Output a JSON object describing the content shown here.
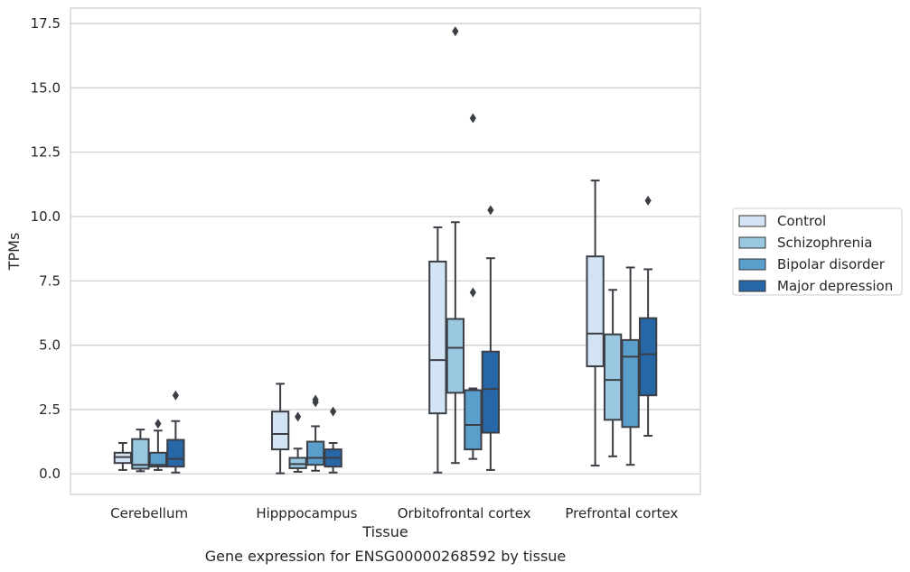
{
  "chart_data": {
    "type": "box",
    "title": "Gene expression for ENSG00000268592 by tissue",
    "xlabel": "Tissue",
    "ylabel": "TPMs",
    "ylim": [
      -0.8,
      18.1
    ],
    "yticks": [
      0.0,
      2.5,
      5.0,
      7.5,
      10.0,
      12.5,
      15.0,
      17.5
    ],
    "ytick_labels": [
      "0.0",
      "2.5",
      "5.0",
      "7.5",
      "10.0",
      "12.5",
      "15.0",
      "17.5"
    ],
    "grid": "horizontal",
    "legend_position": "right",
    "categories": [
      "Cerebellum",
      "Hipppocampus",
      "Orbitofrontal cortex",
      "Prefrontal cortex"
    ],
    "series": [
      {
        "name": "Control",
        "color": "#d2e3f3",
        "boxes": [
          {
            "whislo": 0.15,
            "q1": 0.42,
            "med": 0.65,
            "q3": 0.82,
            "whishi": 1.2,
            "fliers": []
          },
          {
            "whislo": 0.02,
            "q1": 0.95,
            "med": 1.55,
            "q3": 2.42,
            "whishi": 3.5,
            "fliers": []
          },
          {
            "whislo": 0.05,
            "q1": 2.35,
            "med": 4.42,
            "q3": 8.25,
            "whishi": 9.58,
            "fliers": []
          },
          {
            "whislo": 0.32,
            "q1": 4.18,
            "med": 5.45,
            "q3": 8.45,
            "whishi": 11.4,
            "fliers": []
          }
        ]
      },
      {
        "name": "Schizophrenia",
        "color": "#9ac8e0",
        "boxes": [
          {
            "whislo": 0.1,
            "q1": 0.2,
            "med": 0.35,
            "q3": 1.35,
            "whishi": 1.72,
            "fliers": []
          },
          {
            "whislo": 0.08,
            "q1": 0.22,
            "med": 0.38,
            "q3": 0.62,
            "whishi": 0.98,
            "fliers": [
              2.22
            ]
          },
          {
            "whislo": 0.42,
            "q1": 3.15,
            "med": 4.9,
            "q3": 6.02,
            "whishi": 9.78,
            "fliers": [
              17.2
            ]
          },
          {
            "whislo": 0.68,
            "q1": 2.1,
            "med": 3.65,
            "q3": 5.42,
            "whishi": 7.15,
            "fliers": []
          }
        ]
      },
      {
        "name": "Bipolar disorder",
        "color": "#5a9ecc",
        "boxes": [
          {
            "whislo": 0.15,
            "q1": 0.28,
            "med": 0.35,
            "q3": 0.82,
            "whishi": 1.68,
            "fliers": [
              1.95
            ]
          },
          {
            "whislo": 0.12,
            "q1": 0.35,
            "med": 0.62,
            "q3": 1.25,
            "whishi": 1.85,
            "fliers": [
              2.78,
              2.88
            ]
          },
          {
            "whislo": 0.58,
            "q1": 0.95,
            "med": 1.9,
            "q3": 3.25,
            "whishi": 3.32,
            "fliers": [
              13.82,
              7.05
            ]
          },
          {
            "whislo": 0.35,
            "q1": 1.82,
            "med": 4.55,
            "q3": 5.2,
            "whishi": 8.02,
            "fliers": []
          }
        ]
      },
      {
        "name": "Major depression",
        "color": "#2767a8",
        "boxes": [
          {
            "whislo": 0.05,
            "q1": 0.28,
            "med": 0.58,
            "q3": 1.32,
            "whishi": 2.05,
            "fliers": [
              3.05
            ]
          },
          {
            "whislo": 0.05,
            "q1": 0.28,
            "med": 0.62,
            "q3": 0.95,
            "whishi": 1.2,
            "fliers": [
              2.42
            ]
          },
          {
            "whislo": 0.15,
            "q1": 1.6,
            "med": 3.3,
            "q3": 4.75,
            "whishi": 8.38,
            "fliers": [
              10.25
            ]
          },
          {
            "whislo": 1.48,
            "q1": 3.05,
            "med": 4.65,
            "q3": 6.05,
            "whishi": 7.95,
            "fliers": [
              10.62
            ]
          }
        ]
      }
    ]
  }
}
